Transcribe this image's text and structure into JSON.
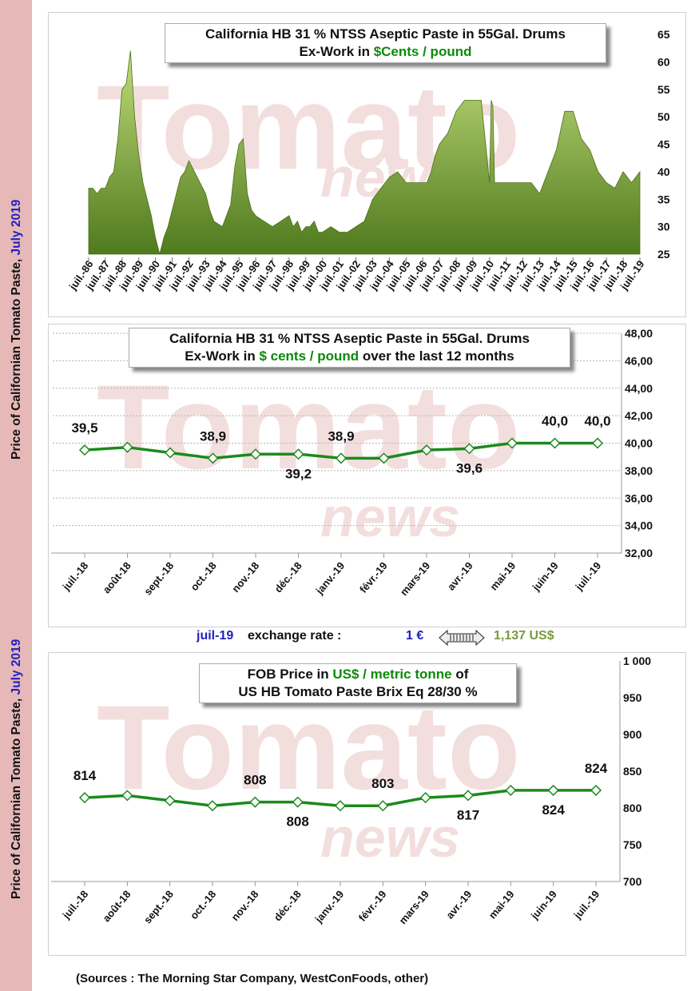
{
  "sidebar": {
    "title_main": "Price of Californian Tomato Paste, ",
    "title_date": "July 2019"
  },
  "watermark": {
    "word1": "Tomato",
    "word2": "news"
  },
  "exchange": {
    "month": "juil-19",
    "label": "exchange rate :",
    "euro": "1 €",
    "usd": "1,137 US$"
  },
  "sources": "(Sources : The Morning Star Company, WestConFoods, other)",
  "chart_data": [
    {
      "type": "area",
      "title_line1": "California HB 31 % NTSS Aseptic Paste in 55Gal. Drums",
      "title_line2_prefix": "Ex-Work in ",
      "title_line2_unit": "$Cents / pound",
      "categories": [
        "juil.-86",
        "juil.-87",
        "juil.-88",
        "juil.-89",
        "juil.-90",
        "juil.-91",
        "juil.-92",
        "juil.-93",
        "juil.-94",
        "juil.-95",
        "juil.-96",
        "juil.-97",
        "juil.-98",
        "juil.-99",
        "juil.-00",
        "juil.-01",
        "juil.-02",
        "juil.-03",
        "juil.-04",
        "juil.-05",
        "juil.-06",
        "juil.-07",
        "juil.-08",
        "juil.-09",
        "juil.-10",
        "juil.-11",
        "juil.-12",
        "juil.-13",
        "juil.-14",
        "juil.-15",
        "juil.-16",
        "juil.-17",
        "juil.-18",
        "juil.-19"
      ],
      "x": [
        0,
        0.25,
        0.5,
        0.75,
        1,
        1.25,
        1.5,
        1.75,
        2,
        2.25,
        2.5,
        2.75,
        3,
        3.25,
        3.5,
        3.75,
        4,
        4.25,
        4.5,
        4.75,
        5,
        5.25,
        5.5,
        5.75,
        6,
        6.5,
        7,
        7.25,
        7.5,
        8,
        8.25,
        8.5,
        8.75,
        9,
        9.25,
        9.5,
        9.75,
        10,
        10.5,
        11,
        11.5,
        12,
        12.25,
        12.5,
        12.75,
        13,
        13.25,
        13.5,
        13.75,
        14,
        14.5,
        15,
        15.5,
        16,
        16.5,
        17,
        17.5,
        18,
        18.5,
        19,
        19.5,
        20,
        20.25,
        20.5,
        20.75,
        21,
        21.5,
        22,
        22.5,
        23,
        23.25,
        23.5,
        24,
        24.1,
        24.2,
        24.3,
        24.5,
        25,
        25.5,
        26,
        26.5,
        27,
        27.5,
        28,
        28.5,
        29,
        29.5,
        30,
        30.5,
        31,
        31.5,
        32,
        32.5,
        33
      ],
      "values": [
        37,
        37,
        36,
        37,
        37,
        39,
        40,
        46,
        55,
        56,
        62,
        50,
        43,
        38,
        35,
        32,
        28,
        25,
        28,
        30,
        33,
        36,
        39,
        40,
        42,
        39,
        36,
        33,
        31,
        30,
        32,
        34,
        41,
        45,
        46,
        36,
        33,
        32,
        31,
        30,
        31,
        32,
        30,
        31,
        29,
        30,
        30,
        31,
        29,
        29,
        30,
        29,
        29,
        30,
        31,
        35,
        37,
        39,
        40,
        38,
        38,
        38,
        38,
        40,
        43,
        45,
        47,
        51,
        53,
        53,
        53,
        53,
        38,
        53,
        52,
        38,
        38,
        38,
        38,
        38,
        38,
        36,
        40,
        44,
        51,
        51,
        46,
        44,
        40,
        38,
        37,
        40,
        38,
        40
      ],
      "ylim": [
        25,
        65
      ],
      "yticks": [
        "25",
        "30",
        "35",
        "40",
        "45",
        "50",
        "55",
        "60",
        "65"
      ]
    },
    {
      "type": "line",
      "title_line1": "California HB 31 % NTSS Aseptic Paste in 55Gal. Drums",
      "title_line2_prefix": "Ex-Work in ",
      "title_line2_unit": "$ cents / pound",
      "title_line2_suffix": " over the last 12 months",
      "categories": [
        "juil.-18",
        "août-18",
        "sept.-18",
        "oct.-18",
        "nov.-18",
        "déc.-18",
        "janv.-19",
        "févr.-19",
        "mars-19",
        "avr.-19",
        "mai-19",
        "juin-19",
        "juil.-19"
      ],
      "values": [
        39.5,
        39.7,
        39.3,
        38.9,
        39.2,
        39.2,
        38.9,
        38.9,
        39.5,
        39.6,
        40.0,
        40.0,
        40.0
      ],
      "data_labels": [
        "39,5",
        "",
        "",
        "38,9",
        "",
        "39,2",
        "38,9",
        "",
        "",
        "39,6",
        "",
        "40,0",
        "40,0"
      ],
      "ylim": [
        32,
        48
      ],
      "yticks": [
        "32,00",
        "34,00",
        "36,00",
        "38,00",
        "40,00",
        "42,00",
        "44,00",
        "46,00",
        "48,00"
      ],
      "grid": true
    },
    {
      "type": "line",
      "title_line1_prefix": "FOB Price in ",
      "title_line1_unit": "US$ / metric tonne",
      "title_line1_suffix": " of",
      "title_line2": "US HB Tomato Paste Brix Eq 28/30 %",
      "categories": [
        "juil.-18",
        "août-18",
        "sept.-18",
        "oct.-18",
        "nov.-18",
        "déc.-18",
        "janv.-19",
        "févr.-19",
        "mars-19",
        "avr.-19",
        "mai-19",
        "juin-19",
        "juil.-19"
      ],
      "values": [
        814,
        817,
        810,
        803,
        808,
        808,
        803,
        803,
        814,
        817,
        824,
        824,
        824
      ],
      "data_labels": [
        "814",
        "",
        "",
        "",
        "808",
        "808",
        "",
        "803",
        "",
        "817",
        "",
        "824",
        "824"
      ],
      "ylim": [
        700,
        1000
      ],
      "yticks": [
        "700",
        "750",
        "800",
        "850",
        "900",
        "950",
        "1 000"
      ]
    }
  ]
}
